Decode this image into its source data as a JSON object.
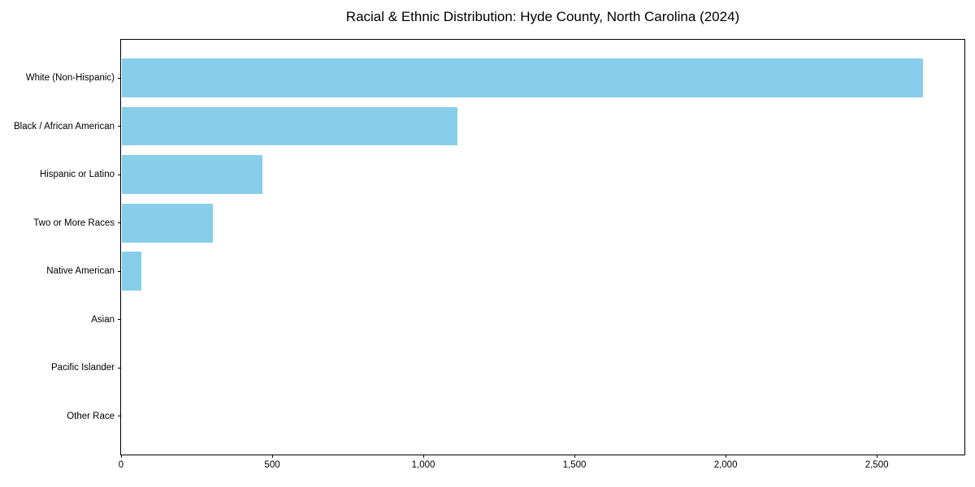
{
  "chart_data": {
    "type": "bar",
    "orientation": "horizontal",
    "title": "Racial & Ethnic Distribution: Hyde County, North Carolina (2024)",
    "categories": [
      "White (Non-Hispanic)",
      "Black / African American",
      "Hispanic or Latino",
      "Two or More Races",
      "Native American",
      "Asian",
      "Pacific Islander",
      "Other Race"
    ],
    "values": [
      2650,
      1110,
      465,
      300,
      65,
      0,
      0,
      0
    ],
    "xlabel": "",
    "ylabel": "",
    "xlim": [
      0,
      2790
    ],
    "xticks": {
      "values": [
        0,
        500,
        1000,
        1500,
        2000,
        2500
      ],
      "labels": [
        "0",
        "500",
        "1,000",
        "1,500",
        "2,000",
        "2,500"
      ]
    },
    "grid": false,
    "legend": false,
    "colors": {
      "bar": "#87CEEB",
      "axis": "#000000",
      "text": "#000000",
      "background": "#ffffff"
    }
  }
}
